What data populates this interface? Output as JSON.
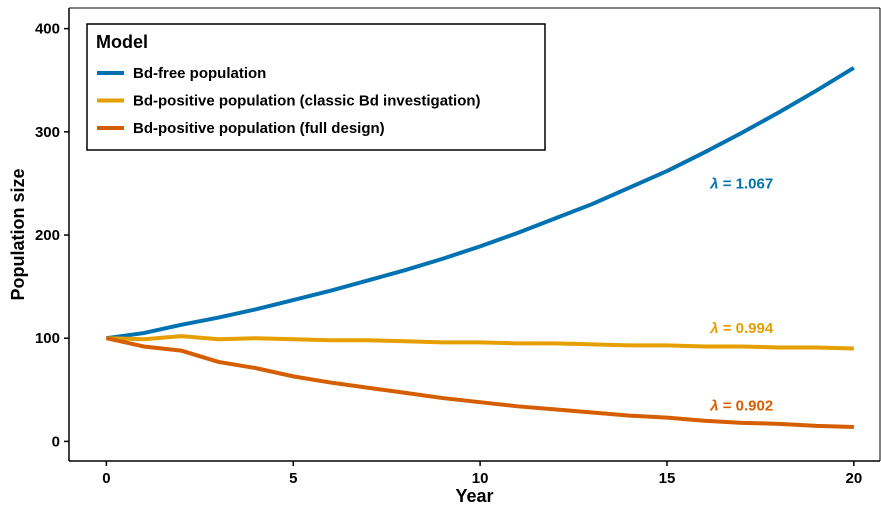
{
  "chart_data": {
    "type": "line",
    "xlabel": "Year",
    "ylabel": "Population size",
    "xlim": [
      -1,
      20.7
    ],
    "ylim": [
      -19,
      420
    ],
    "xticks": [
      0,
      5,
      10,
      15,
      20
    ],
    "yticks": [
      0,
      100,
      200,
      300,
      400
    ],
    "grid": false,
    "legend": {
      "title": "Model",
      "position": "top-left",
      "boxed": true
    },
    "x": [
      0,
      1,
      2,
      3,
      4,
      5,
      6,
      7,
      8,
      9,
      10,
      11,
      12,
      13,
      14,
      15,
      16,
      17,
      18,
      19,
      20
    ],
    "series": [
      {
        "name": "Bd-free population",
        "color": "#0072B2",
        "values": [
          100,
          105,
          113,
          120,
          128,
          137,
          146,
          156,
          166,
          177,
          189,
          202,
          216,
          230,
          246,
          262,
          280,
          299,
          319,
          340,
          362
        ]
      },
      {
        "name": "Bd-positive population (classic Bd investigation)",
        "color": "#E69F00",
        "values": [
          100,
          99,
          102,
          99,
          100,
          99,
          98,
          98,
          97,
          96,
          96,
          95,
          95,
          94,
          93,
          93,
          92,
          92,
          91,
          91,
          90
        ]
      },
      {
        "name": "Bd-positive population (full design)",
        "color": "#D55E00",
        "values": [
          100,
          92,
          88,
          77,
          71,
          63,
          57,
          52,
          47,
          42,
          38,
          34,
          31,
          28,
          25,
          23,
          20,
          18,
          17,
          15,
          14
        ]
      }
    ],
    "annotations": [
      {
        "text": "λ = 1.067",
        "x": 17,
        "y": 250,
        "color": "#0072B2"
      },
      {
        "text": "λ = 0.994",
        "x": 17,
        "y": 110,
        "color": "#E69F00"
      },
      {
        "text": "λ = 0.902",
        "x": 17,
        "y": 35,
        "color": "#D55E00"
      }
    ]
  }
}
